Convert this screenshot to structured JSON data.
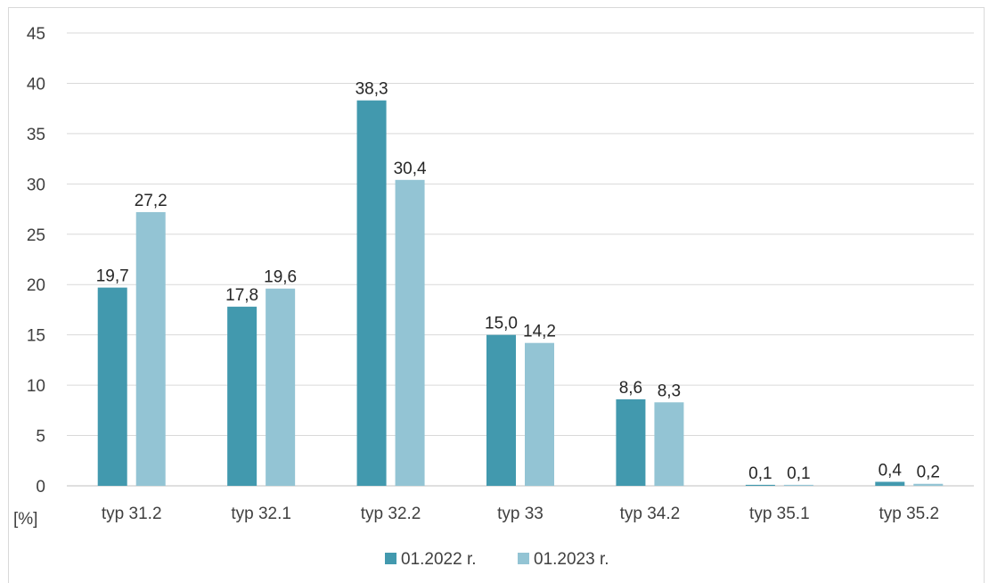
{
  "chart_data": {
    "type": "bar",
    "categories": [
      "typ 31.2",
      "typ 32.1",
      "typ 32.2",
      "typ 33",
      "typ 34.2",
      "typ 35.1",
      "typ 35.2"
    ],
    "series": [
      {
        "name": "01.2022 r.",
        "color": "#4299ae",
        "values": [
          19.7,
          17.8,
          38.3,
          15.0,
          8.6,
          0.1,
          0.4
        ],
        "labels": [
          "19,7",
          "17,8",
          "38,3",
          "15,0",
          "8,6",
          "0,1",
          "0,4"
        ]
      },
      {
        "name": "01.2023 r.",
        "color": "#93c4d4",
        "values": [
          27.2,
          19.6,
          30.4,
          14.2,
          8.3,
          0.1,
          0.2
        ],
        "labels": [
          "27,2",
          "19,6",
          "30,4",
          "14,2",
          "8,3",
          "0,1",
          "0,2"
        ]
      }
    ],
    "unit_label": "[%]",
    "ylim": [
      0,
      45
    ],
    "yticks": [
      0,
      5,
      10,
      15,
      20,
      25,
      30,
      35,
      40,
      45
    ],
    "grid": true,
    "legend_position": "bottom"
  }
}
